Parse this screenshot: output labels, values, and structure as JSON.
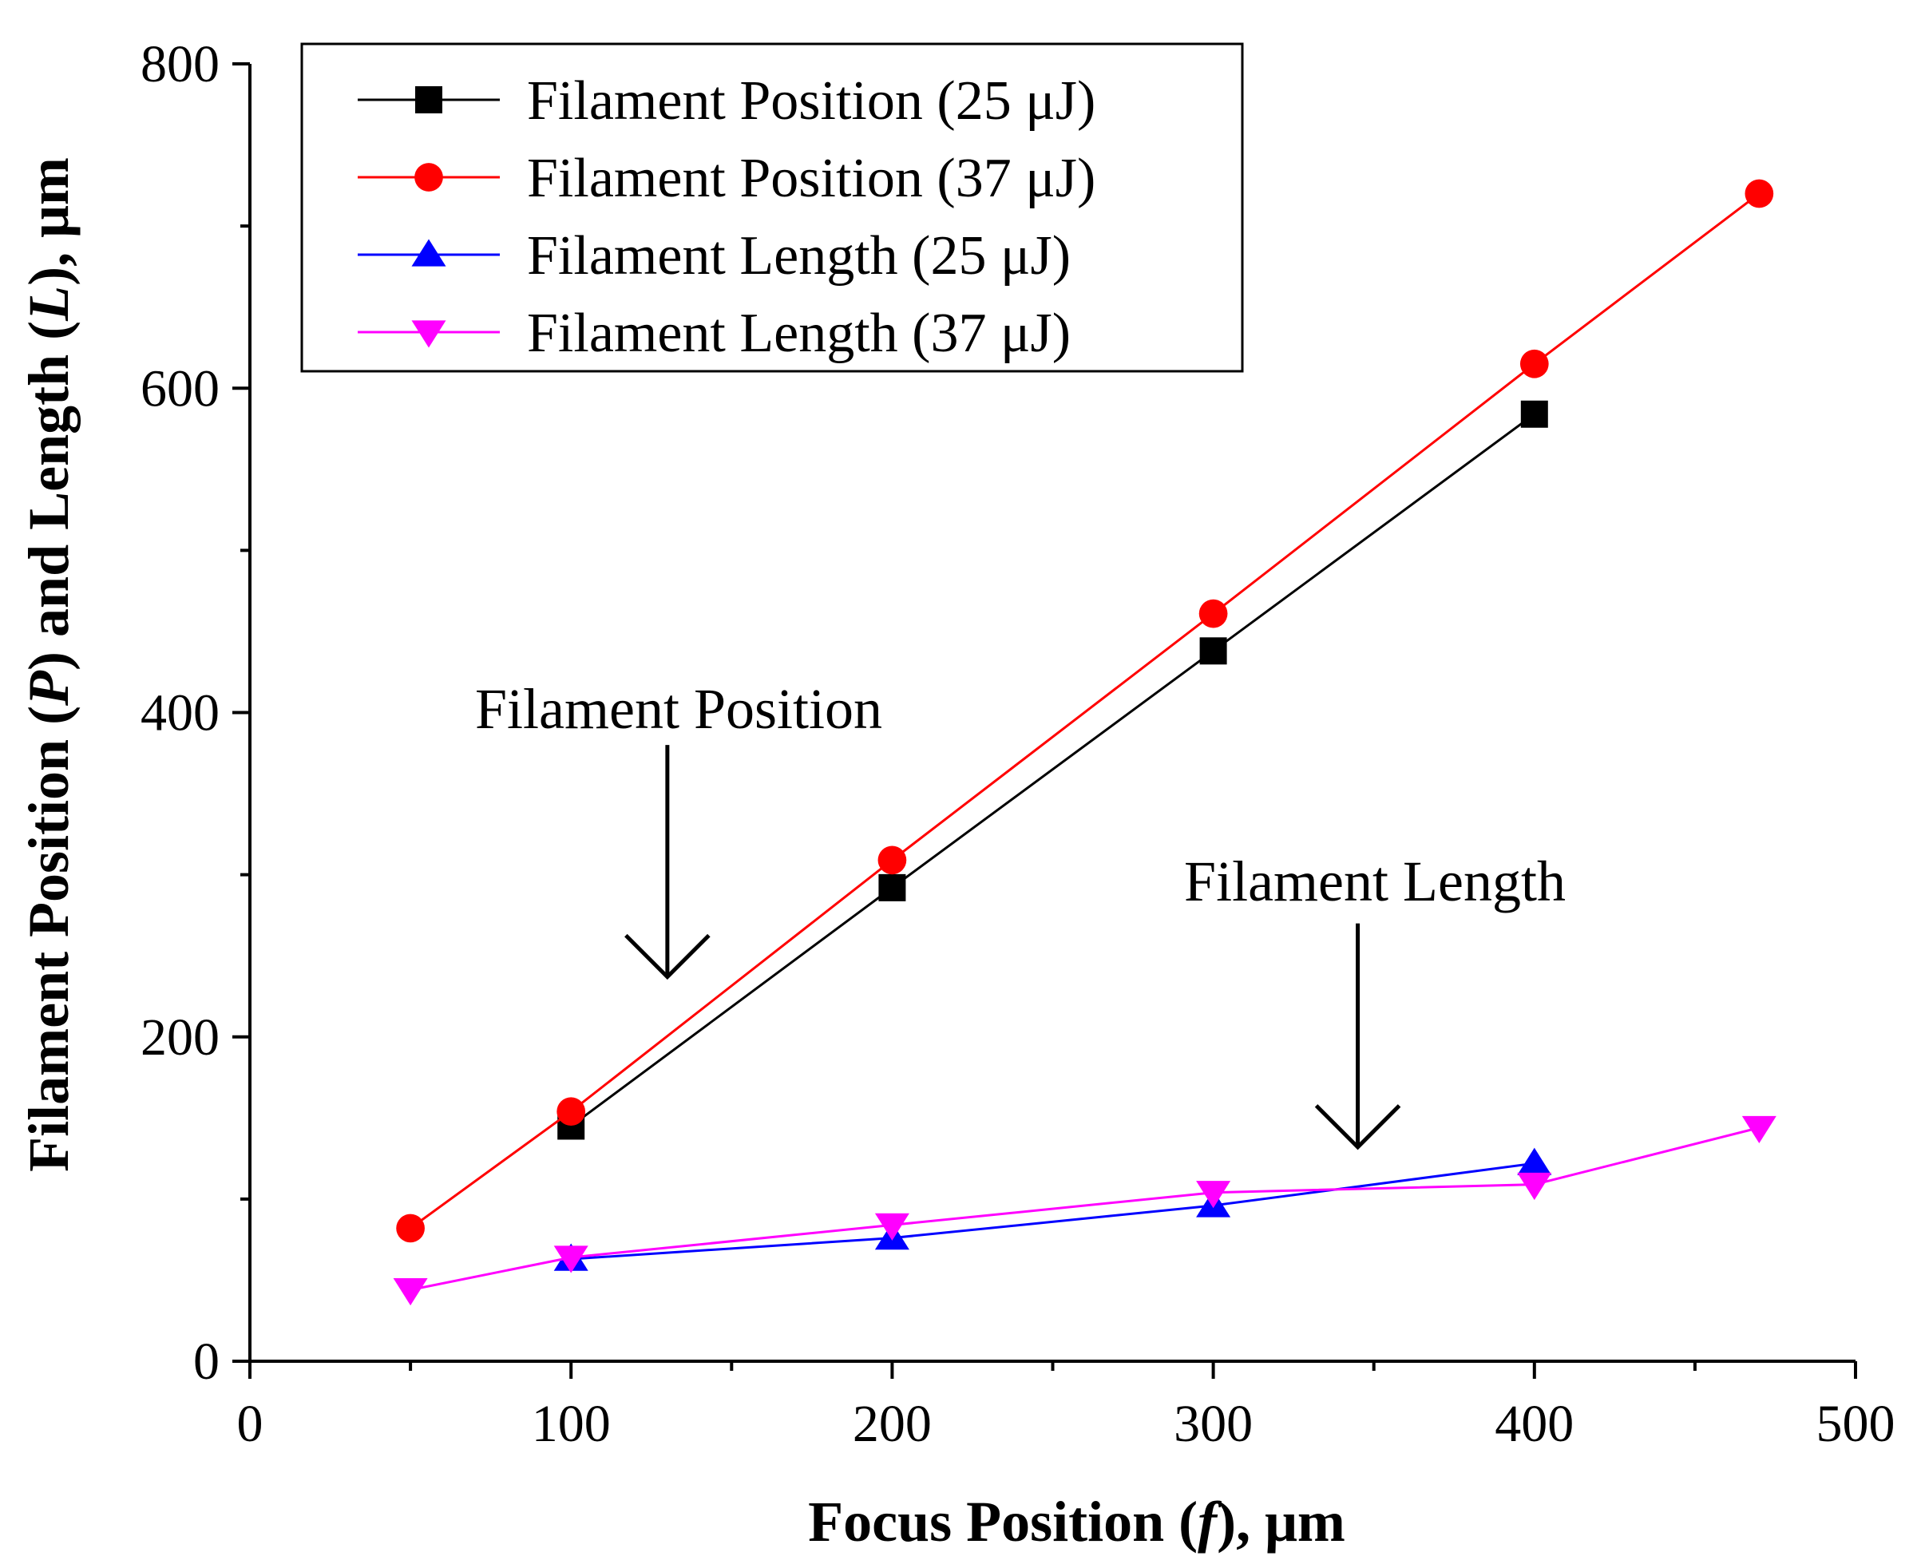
{
  "chart_data": {
    "type": "line",
    "title": "",
    "xlabel": {
      "prefix": "Focus Position (",
      "var": "f",
      "suffix": "), μm"
    },
    "ylabel": {
      "part1": "Filament Position (",
      "var1": "P",
      "part2": ") and Length (",
      "var2": "L",
      "part3": "), μm"
    },
    "xlim": [
      0,
      500
    ],
    "ylim": [
      0,
      800
    ],
    "xticks": [
      0,
      100,
      200,
      300,
      400,
      500
    ],
    "yticks": [
      0,
      200,
      400,
      600,
      800
    ],
    "x_minor_step": 50,
    "y_minor_step": 100,
    "grid": false,
    "legend_position": "top-left",
    "series": [
      {
        "name": "Filament Position (25 μJ)",
        "color": "#000000",
        "marker": "square",
        "x": [
          100,
          200,
          300,
          400
        ],
        "y": [
          145,
          292,
          438,
          584
        ]
      },
      {
        "name": "Filament Position (37 μJ)",
        "color": "#ff0000",
        "marker": "circle",
        "x": [
          50,
          100,
          200,
          300,
          400,
          470
        ],
        "y": [
          82,
          154,
          309,
          461,
          615,
          720
        ]
      },
      {
        "name": "Filament Length (25 μJ)",
        "color": "#0000ff",
        "marker": "triangle-up",
        "x": [
          100,
          200,
          300,
          400
        ],
        "y": [
          63,
          76,
          96,
          122
        ]
      },
      {
        "name": "Filament Length (37 μJ)",
        "color": "#ff00ff",
        "marker": "triangle-down",
        "x": [
          50,
          100,
          200,
          300,
          400,
          470
        ],
        "y": [
          44,
          64,
          84,
          104,
          109,
          144
        ]
      }
    ],
    "annotations": [
      {
        "text": "Filament Position",
        "arrow_x": 130,
        "arrow_from_y": 380,
        "arrow_to_y": 237
      },
      {
        "text": "Filament Length",
        "arrow_x": 345,
        "arrow_from_y": 270,
        "arrow_to_y": 132
      }
    ]
  }
}
